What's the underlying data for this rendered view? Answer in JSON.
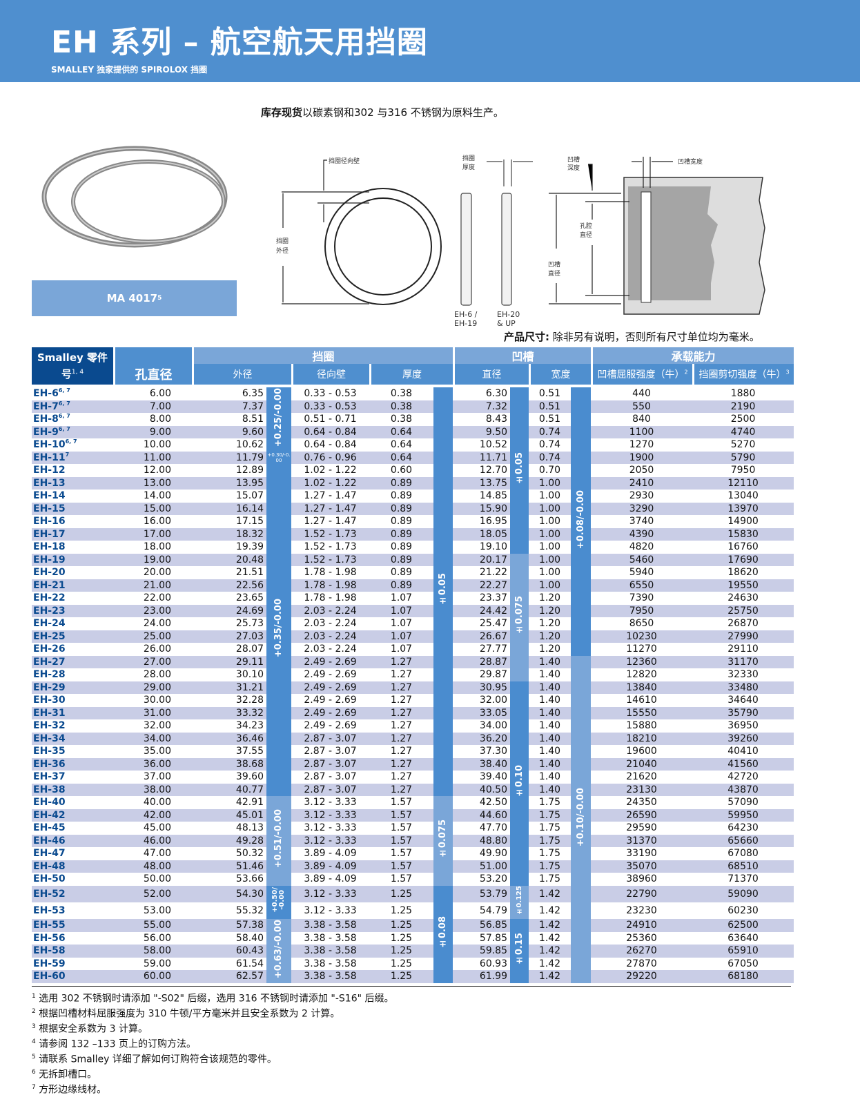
{
  "header": {
    "title": "EH 系列 – 航空航天用挡圈",
    "subtitle": "SMALLEY 独家提供的 SPIROLOX 挡圈"
  },
  "intro": {
    "bold": "库存现货",
    "text": "以碳素钢和302 与316 不锈钢为原料生产。"
  },
  "product_label": {
    "text": "MA 4017",
    "sup": "5"
  },
  "diagram": {
    "radial_wall": "挡圈径向壁",
    "outer_dia": [
      "挡圈",
      "外径"
    ],
    "thickness": [
      "挡圈",
      "厚度"
    ],
    "side_a": [
      "EH-6 /",
      "EH-19"
    ],
    "side_b": [
      "EH-20",
      "& UP"
    ],
    "groove_depth": [
      "凹槽",
      "深度"
    ],
    "groove_width": "凹槽宽度",
    "bore_dia": [
      "孔腔",
      "直径"
    ],
    "groove_dia": [
      "凹槽",
      "直径"
    ]
  },
  "dim_note": {
    "bold": "产品尺寸:",
    "text": " 除非另有说明，否则所有尺寸单位均为毫米。"
  },
  "table": {
    "headers": {
      "part": "Smalley 零件",
      "part2": "号",
      "part_sup": "1, 4",
      "bore": "孔直径",
      "ring": "挡圈",
      "groove": "凹槽",
      "load": "承载能力",
      "od": "外径",
      "radial": "径向壁",
      "thick": "厚度",
      "gdia": "直径",
      "gwidth": "宽度",
      "yield": "凹槽屈服强度（牛）",
      "yield_sup": "2",
      "shear": "挡圈剪切强度（牛）",
      "shear_sup": "3"
    },
    "rows": [
      [
        "EH-6",
        "6, 7",
        "6.00",
        "6.35",
        "0.33 - 0.53",
        "0.38",
        "6.30",
        "0.51",
        "440",
        "1880"
      ],
      [
        "EH-7",
        "6, 7",
        "7.00",
        "7.37",
        "0.33 - 0.53",
        "0.38",
        "7.32",
        "0.51",
        "550",
        "2190"
      ],
      [
        "EH-8",
        "6, 7",
        "8.00",
        "8.51",
        "0.51 - 0.71",
        "0.38",
        "8.43",
        "0.51",
        "840",
        "2500"
      ],
      [
        "EH-9",
        "6, 7",
        "9.00",
        "9.60",
        "0.64 - 0.84",
        "0.64",
        "9.50",
        "0.74",
        "1100",
        "4740"
      ],
      [
        "EH-10",
        "6, 7",
        "10.00",
        "10.62",
        "0.64 - 0.84",
        "0.64",
        "10.52",
        "0.74",
        "1270",
        "5270"
      ],
      [
        "EH-11",
        "7",
        "11.00",
        "11.79",
        "0.76 - 0.96",
        "0.64",
        "11.71",
        "0.74",
        "1900",
        "5790"
      ],
      [
        "EH-12",
        "",
        "12.00",
        "12.89",
        "1.02 - 1.22",
        "0.60",
        "12.70",
        "0.70",
        "2050",
        "7950"
      ],
      [
        "EH-13",
        "",
        "13.00",
        "13.95",
        "1.02 - 1.22",
        "0.89",
        "13.75",
        "1.00",
        "2410",
        "12110"
      ],
      [
        "EH-14",
        "",
        "14.00",
        "15.07",
        "1.27 - 1.47",
        "0.89",
        "14.85",
        "1.00",
        "2930",
        "13040"
      ],
      [
        "EH-15",
        "",
        "15.00",
        "16.14",
        "1.27 - 1.47",
        "0.89",
        "15.90",
        "1.00",
        "3290",
        "13970"
      ],
      [
        "EH-16",
        "",
        "16.00",
        "17.15",
        "1.27 - 1.47",
        "0.89",
        "16.95",
        "1.00",
        "3740",
        "14900"
      ],
      [
        "EH-17",
        "",
        "17.00",
        "18.32",
        "1.52 - 1.73",
        "0.89",
        "18.05",
        "1.00",
        "4390",
        "15830"
      ],
      [
        "EH-18",
        "",
        "18.00",
        "19.39",
        "1.52 - 1.73",
        "0.89",
        "19.10",
        "1.00",
        "4820",
        "16760"
      ],
      [
        "EH-19",
        "",
        "19.00",
        "20.48",
        "1.52 - 1.73",
        "0.89",
        "20.17",
        "1.00",
        "5460",
        "17690"
      ],
      [
        "EH-20",
        "",
        "20.00",
        "21.51",
        "1.78 - 1.98",
        "0.89",
        "21.22",
        "1.00",
        "5940",
        "18620"
      ],
      [
        "EH-21",
        "",
        "21.00",
        "22.56",
        "1.78 - 1.98",
        "0.89",
        "22.27",
        "1.00",
        "6550",
        "19550"
      ],
      [
        "EH-22",
        "",
        "22.00",
        "23.65",
        "1.78 - 1.98",
        "1.07",
        "23.37",
        "1.20",
        "7390",
        "24630"
      ],
      [
        "EH-23",
        "",
        "23.00",
        "24.69",
        "2.03 - 2.24",
        "1.07",
        "24.42",
        "1.20",
        "7950",
        "25750"
      ],
      [
        "EH-24",
        "",
        "24.00",
        "25.73",
        "2.03 - 2.24",
        "1.07",
        "25.47",
        "1.20",
        "8650",
        "26870"
      ],
      [
        "EH-25",
        "",
        "25.00",
        "27.03",
        "2.03 - 2.24",
        "1.07",
        "26.67",
        "1.20",
        "10230",
        "27990"
      ],
      [
        "EH-26",
        "",
        "26.00",
        "28.07",
        "2.03 - 2.24",
        "1.07",
        "27.77",
        "1.20",
        "11270",
        "29110"
      ],
      [
        "EH-27",
        "",
        "27.00",
        "29.11",
        "2.49 - 2.69",
        "1.27",
        "28.87",
        "1.40",
        "12360",
        "31170"
      ],
      [
        "EH-28",
        "",
        "28.00",
        "30.10",
        "2.49 - 2.69",
        "1.27",
        "29.87",
        "1.40",
        "12820",
        "32330"
      ],
      [
        "EH-29",
        "",
        "29.00",
        "31.21",
        "2.49 - 2.69",
        "1.27",
        "30.95",
        "1.40",
        "13840",
        "33480"
      ],
      [
        "EH-30",
        "",
        "30.00",
        "32.28",
        "2.49 - 2.69",
        "1.27",
        "32.00",
        "1.40",
        "14610",
        "34640"
      ],
      [
        "EH-31",
        "",
        "31.00",
        "33.32",
        "2.49 - 2.69",
        "1.27",
        "33.05",
        "1.40",
        "15550",
        "35790"
      ],
      [
        "EH-32",
        "",
        "32.00",
        "34.23",
        "2.49 - 2.69",
        "1.27",
        "34.00",
        "1.40",
        "15880",
        "36950"
      ],
      [
        "EH-34",
        "",
        "34.00",
        "36.46",
        "2.87 - 3.07",
        "1.27",
        "36.20",
        "1.40",
        "18210",
        "39260"
      ],
      [
        "EH-35",
        "",
        "35.00",
        "37.55",
        "2.87 - 3.07",
        "1.27",
        "37.30",
        "1.40",
        "19600",
        "40410"
      ],
      [
        "EH-36",
        "",
        "36.00",
        "38.68",
        "2.87 - 3.07",
        "1.27",
        "38.40",
        "1.40",
        "21040",
        "41560"
      ],
      [
        "EH-37",
        "",
        "37.00",
        "39.60",
        "2.87 - 3.07",
        "1.27",
        "39.40",
        "1.40",
        "21620",
        "42720"
      ],
      [
        "EH-38",
        "",
        "38.00",
        "40.77",
        "2.87 - 3.07",
        "1.27",
        "40.50",
        "1.40",
        "23130",
        "43870"
      ],
      [
        "EH-40",
        "",
        "40.00",
        "42.91",
        "3.12 - 3.33",
        "1.57",
        "42.50",
        "1.75",
        "24350",
        "57090"
      ],
      [
        "EH-42",
        "",
        "42.00",
        "45.01",
        "3.12 - 3.33",
        "1.57",
        "44.60",
        "1.75",
        "26590",
        "59950"
      ],
      [
        "EH-45",
        "",
        "45.00",
        "48.13",
        "3.12 - 3.33",
        "1.57",
        "47.70",
        "1.75",
        "29590",
        "64230"
      ],
      [
        "EH-46",
        "",
        "46.00",
        "49.28",
        "3.12 - 3.33",
        "1.57",
        "48.80",
        "1.75",
        "31370",
        "65660"
      ],
      [
        "EH-47",
        "",
        "47.00",
        "50.32",
        "3.89 - 4.09",
        "1.57",
        "49.90",
        "1.75",
        "33190",
        "67080"
      ],
      [
        "EH-48",
        "",
        "48.00",
        "51.46",
        "3.89 - 4.09",
        "1.57",
        "51.00",
        "1.75",
        "35070",
        "68510"
      ],
      [
        "EH-50",
        "",
        "50.00",
        "53.66",
        "3.89 - 4.09",
        "1.57",
        "53.20",
        "1.75",
        "38960",
        "71370"
      ],
      [
        "EH-52",
        "",
        "52.00",
        "54.30",
        "3.12 - 3.33",
        "1.25",
        "53.79",
        "1.42",
        "22790",
        "59090"
      ],
      [
        "EH-53",
        "",
        "53.00",
        "55.32",
        "3.12 - 3.33",
        "1.25",
        "54.79",
        "1.42",
        "23230",
        "60230"
      ],
      [
        "EH-55",
        "",
        "55.00",
        "57.38",
        "3.38 - 3.58",
        "1.25",
        "56.85",
        "1.42",
        "24910",
        "62500"
      ],
      [
        "EH-56",
        "",
        "56.00",
        "58.40",
        "3.38 - 3.58",
        "1.25",
        "57.85",
        "1.42",
        "25360",
        "63640"
      ],
      [
        "EH-58",
        "",
        "58.00",
        "60.43",
        "3.38 - 3.58",
        "1.25",
        "59.85",
        "1.42",
        "26270",
        "65910"
      ],
      [
        "EH-59",
        "",
        "59.00",
        "61.54",
        "3.38 - 3.58",
        "1.25",
        "60.93",
        "1.42",
        "27870",
        "67050"
      ],
      [
        "EH-60",
        "",
        "60.00",
        "62.57",
        "3.38 - 3.58",
        "1.25",
        "61.99",
        "1.42",
        "29220",
        "68180"
      ]
    ],
    "tolerances": {
      "od": [
        {
          "text": "+0.25/-0.00",
          "from": "EH-6",
          "to": "EH-10"
        },
        {
          "text": "+0.30/-0.00",
          "from": "EH-11",
          "to": "EH-11",
          "style": "tiny"
        },
        {
          "text": "+0.35/-0.00",
          "from": "EH-12",
          "to": "EH-38"
        },
        {
          "text": "+0.51/-0.00",
          "from": "EH-40",
          "to": "EH-50",
          "light": true
        },
        {
          "text": "+0.50/\n-0.00",
          "from": "EH-52",
          "to": "EH-53",
          "style": "small"
        },
        {
          "text": "+0.63/-0.00",
          "from": "EH-55",
          "to": "EH-60",
          "light": true
        }
      ],
      "thick": [
        {
          "text": "±0.05",
          "from": "EH-6",
          "to": "EH-38"
        },
        {
          "text": "±0.075",
          "from": "EH-40",
          "to": "EH-50",
          "light": true
        },
        {
          "text": "±0.08",
          "from": "EH-52",
          "to": "EH-60"
        }
      ],
      "gdia": [
        {
          "text": "±0.05",
          "from": "EH-6",
          "to": "EH-18"
        },
        {
          "text": "±0.075",
          "from": "EH-19",
          "to": "EH-28",
          "light": true
        },
        {
          "text": "±0.10",
          "from": "EH-29",
          "to": "EH-50"
        },
        {
          "text": "±0.125",
          "from": "EH-52",
          "to": "EH-53",
          "light": true,
          "style": "small"
        },
        {
          "text": "±0.15",
          "from": "EH-55",
          "to": "EH-60"
        }
      ],
      "gwidth": [
        {
          "text": "+0.08/-0.00",
          "from": "EH-6",
          "to": "EH-26"
        },
        {
          "text": "+0.10/-0.00",
          "from": "EH-27",
          "to": "EH-60",
          "light": true
        }
      ]
    }
  },
  "footnotes": [
    {
      "n": "1",
      "text": "选用 302 不锈钢时请添加 \"-S02\" 后缀，选用 316 不锈钢时请添加 \"-S16\" 后缀。"
    },
    {
      "n": "2",
      "text": "根据凹槽材料屈服强度为 310 牛顿/平方毫米并且安全系数为 2 计算。"
    },
    {
      "n": "3",
      "text": "根据安全系数为 3 计算。"
    },
    {
      "n": "4",
      "text": "请参阅 132 –133 页上的订购方法。"
    },
    {
      "n": "5",
      "text": "请联系 Smalley 详细了解如何订购符合该规范的零件。"
    },
    {
      "n": "6",
      "text": "无拆卸槽口。"
    },
    {
      "n": "7",
      "text": "方形边缘线材。"
    }
  ],
  "colors": {
    "banner": "#4f8fcf",
    "part_header": "#0a4a8f",
    "band": "#4a8ccf",
    "band_light": "#7aa6d8",
    "row_alt": "#c9cde6"
  }
}
